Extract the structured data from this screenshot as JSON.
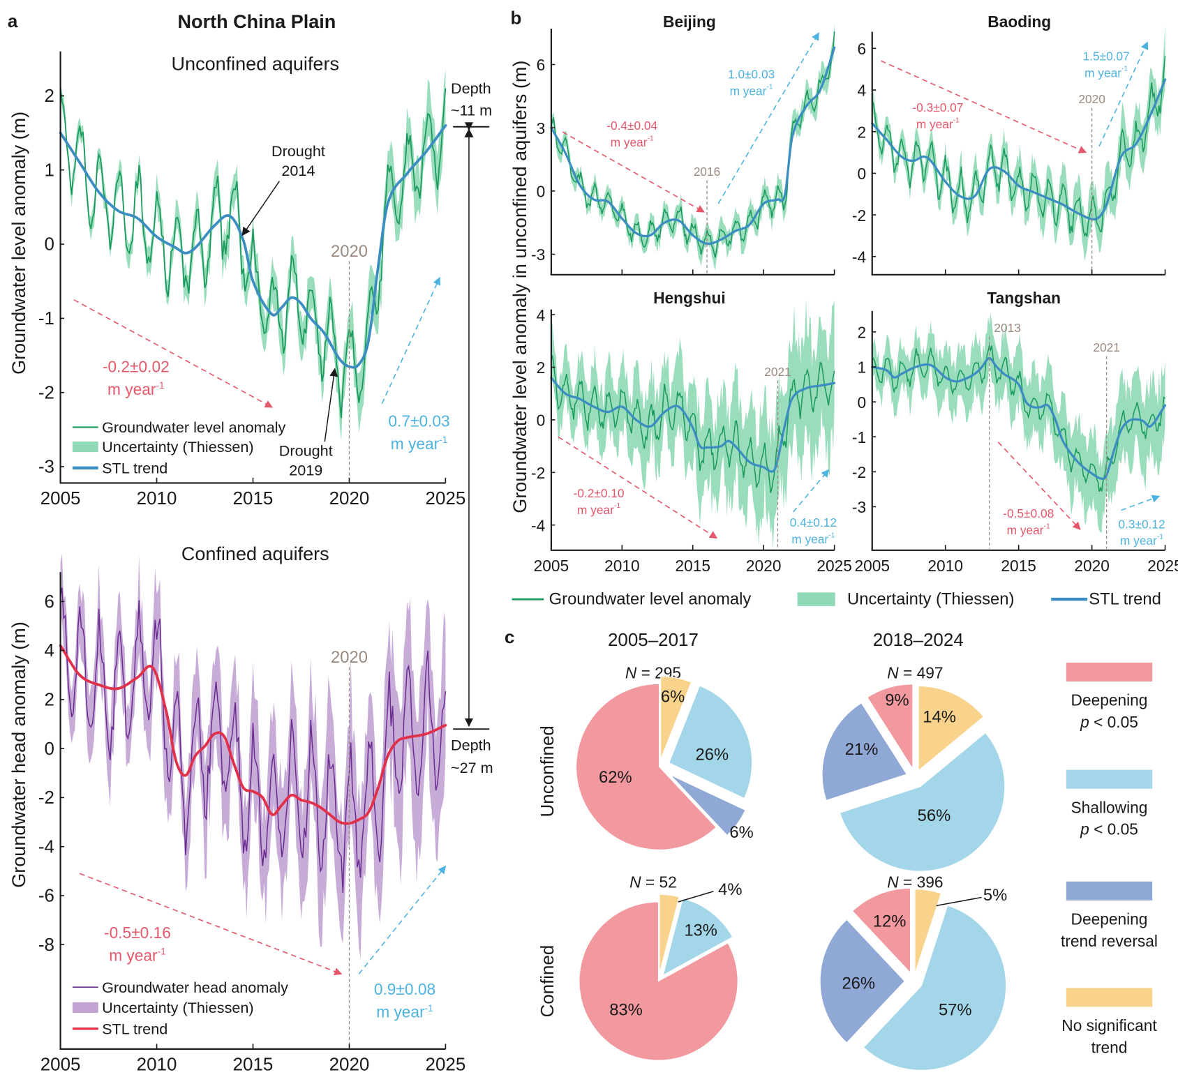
{
  "figure": {
    "panel_a_letter": "a",
    "panel_b_letter": "b",
    "panel_c_letter": "c",
    "panel_a_title": "North China Plain"
  },
  "colors": {
    "green_line": "#1a9a5a",
    "green_band": "#8fd9b6",
    "blue_trend": "#3d8ec0",
    "purple_line": "#6a2d8f",
    "purple_band": "#c2a3d4",
    "red_trend": "#e0304a",
    "decline_arrow": "#e5576a",
    "rise_arrow": "#4fb3e0",
    "year_marker": "#9a8a80",
    "deepening": "#f2989f",
    "shallowing": "#a3d6e8",
    "reversal": "#90a8d6",
    "no_trend": "#f9d28c"
  },
  "chart_data": [
    {
      "id": "a-unconfined",
      "type": "line",
      "title": "Unconfined aquifers",
      "xlabel": "",
      "ylabel": "Groundwater level anomaly (m)",
      "xlim": [
        2005,
        2025
      ],
      "ylim": [
        -3.2,
        2.6
      ],
      "xticks": [
        2005,
        2010,
        2015,
        2020,
        2025
      ],
      "yticks": [
        -3,
        -2,
        -1,
        0,
        1,
        2
      ],
      "grid": false,
      "legend": {
        "placement": "bottom-left",
        "entries": [
          "Groundwater level anomaly",
          "Uncertainty (Thiessen)",
          "STL trend"
        ]
      },
      "trend": {
        "x": [
          2005,
          2006,
          2007,
          2008,
          2009,
          2010,
          2011,
          2011.5,
          2012,
          2013,
          2013.8,
          2014.5,
          2015,
          2016,
          2016.5,
          2017,
          2017.5,
          2018,
          2018.7,
          2019.5,
          2020,
          2020.5,
          2021,
          2021.5,
          2022,
          2023,
          2024,
          2025
        ],
        "y": [
          1.5,
          1.1,
          0.7,
          0.45,
          0.35,
          0.1,
          -0.05,
          -0.12,
          -0.05,
          0.25,
          0.38,
          0.05,
          -0.5,
          -0.95,
          -0.85,
          -0.72,
          -0.8,
          -1.0,
          -1.2,
          -1.55,
          -1.65,
          -1.62,
          -1.3,
          -0.3,
          0.55,
          0.95,
          1.25,
          1.6
        ]
      },
      "anomaly_seasonal_amplitude": 0.55,
      "band_halfwidth_early": 0.12,
      "band_halfwidth_late": 0.35,
      "marker_year": 2020,
      "marker_label": "2020",
      "annotations": [
        {
          "text": "Drought",
          "text2": "2014",
          "target_x": 2014.5,
          "target_y": 0.1
        },
        {
          "text": "Drought",
          "text2": "2019",
          "target_x": 2019.2,
          "target_y": -1.7
        }
      ],
      "trend_arrows": [
        {
          "kind": "decline",
          "rate": "-0.2±0.02",
          "unit": "m year",
          "sup": "-1",
          "x0": 2005.7,
          "y0": -0.75,
          "x1": 2016,
          "y1": -2.2
        },
        {
          "kind": "rise",
          "rate": "0.7±0.03",
          "unit": "m year",
          "sup": "-1",
          "x0": 2021.7,
          "y0": -2.15,
          "x1": 2024.7,
          "y1": -0.45
        }
      ],
      "depth_label": [
        "Depth",
        "~11 m"
      ]
    },
    {
      "id": "a-confined",
      "type": "line",
      "title": "Confined aquifers",
      "ylabel": "Groundwater head anomaly (m)",
      "xlim": [
        2005,
        2025
      ],
      "ylim": [
        -12.2,
        7.2
      ],
      "xticks": [
        2005,
        2010,
        2015,
        2020,
        2025
      ],
      "yticks": [
        -8,
        -6,
        -4,
        -2,
        0,
        2,
        4,
        6
      ],
      "grid": false,
      "legend": {
        "placement": "bottom-left",
        "entries": [
          "Groundwater head anomaly",
          "Uncertainty (Thiessen)",
          "STL trend"
        ]
      },
      "trend": {
        "x": [
          2005,
          2006,
          2007,
          2008,
          2009,
          2009.8,
          2010.5,
          2011,
          2011.5,
          2012,
          2012.5,
          2013,
          2013.5,
          2014,
          2014.5,
          2015,
          2015.5,
          2016,
          2016.5,
          2017,
          2017.5,
          2018,
          2018.5,
          2019,
          2019.5,
          2020,
          2020.5,
          2021,
          2021.5,
          2022,
          2022.5,
          2023,
          2024,
          2025
        ],
        "y": [
          4.2,
          3.0,
          2.6,
          2.45,
          2.9,
          3.3,
          1.5,
          -0.5,
          -1.1,
          -0.3,
          0.1,
          0.6,
          0.5,
          -0.6,
          -1.6,
          -1.75,
          -2.0,
          -2.7,
          -2.3,
          -1.9,
          -2.1,
          -2.2,
          -2.4,
          -2.7,
          -3.0,
          -3.05,
          -2.9,
          -2.6,
          -1.6,
          -0.3,
          0.3,
          0.45,
          0.6,
          0.95
        ]
      },
      "anomaly_seasonal_amplitude": 2.6,
      "band_halfwidth_early": 1.2,
      "band_halfwidth_late": 3.0,
      "marker_year": 2020,
      "marker_label": "2020",
      "trend_arrows": [
        {
          "kind": "decline",
          "rate": "-0.5±0.16",
          "unit": "m year",
          "sup": "-1",
          "x0": 2006,
          "y0": -5.1,
          "x1": 2019.6,
          "y1": -9.2
        },
        {
          "kind": "rise",
          "rate": "0.9±0.08",
          "unit": "m year",
          "sup": "-1",
          "x0": 2020.5,
          "y0": -9.2,
          "x1": 2025,
          "y1": -4.8
        }
      ],
      "depth_label": [
        "Depth",
        "~27 m"
      ]
    },
    {
      "id": "b-beijing",
      "type": "line",
      "title": "Beijing",
      "xlim": [
        2005,
        2025
      ],
      "ylim": [
        -3.9,
        7.7
      ],
      "xticks": [
        2005,
        2010,
        2015,
        2020,
        2025
      ],
      "show_xtick_labels": false,
      "yticks": [
        -3,
        0,
        3,
        6
      ],
      "trend": {
        "x": [
          2005,
          2006,
          2007,
          2008,
          2009,
          2010,
          2011,
          2012,
          2013,
          2014,
          2015,
          2016,
          2017,
          2018,
          2019,
          2020,
          2021,
          2021.5,
          2022,
          2023,
          2024,
          2025
        ],
        "y": [
          3.0,
          1.8,
          0.3,
          -0.4,
          -0.5,
          -1.3,
          -2.0,
          -2.1,
          -1.5,
          -1.4,
          -2.1,
          -2.5,
          -2.3,
          -1.9,
          -1.6,
          -0.6,
          -0.4,
          -0.2,
          2.5,
          4.0,
          4.8,
          6.8
        ]
      },
      "anomaly_seasonal_amplitude": 0.6,
      "band_halfwidth_early": 0.35,
      "band_halfwidth_late": 0.6,
      "marker_year": 2016,
      "marker_label": "2016",
      "trend_arrows": [
        {
          "kind": "decline",
          "rate": "-0.4±0.04",
          "unit": "m year",
          "sup": "-1",
          "x0": 2005.8,
          "y0": 2.8,
          "x1": 2015.8,
          "y1": -1.0
        },
        {
          "kind": "rise",
          "rate": "1.0±0.03",
          "unit": "m year",
          "sup": "-1",
          "x0": 2016.8,
          "y0": -0.6,
          "x1": 2023.9,
          "y1": 7.5
        }
      ]
    },
    {
      "id": "b-baoding",
      "type": "line",
      "title": "Baoding",
      "xlim": [
        2005,
        2025
      ],
      "ylim": [
        -4.8,
        6.8
      ],
      "xticks": [
        2005,
        2010,
        2015,
        2020,
        2025
      ],
      "show_xtick_labels": false,
      "yticks": [
        -4,
        -2,
        0,
        2,
        4,
        6
      ],
      "trend": {
        "x": [
          2005,
          2006,
          2007,
          2007.8,
          2008.5,
          2009,
          2010,
          2011,
          2012,
          2013,
          2014,
          2015,
          2016,
          2017,
          2018,
          2019,
          2020,
          2020.5,
          2021,
          2022,
          2023,
          2024,
          2025
        ],
        "y": [
          2.4,
          1.6,
          0.8,
          0.6,
          0.8,
          0.6,
          -0.4,
          -1.1,
          -1.1,
          0.2,
          0.1,
          -0.6,
          -0.9,
          -1.2,
          -1.5,
          -1.9,
          -2.2,
          -2.1,
          -1.5,
          0.8,
          1.4,
          2.8,
          4.5
        ]
      },
      "anomaly_seasonal_amplitude": 1.0,
      "band_halfwidth_early": 0.5,
      "band_halfwidth_late": 1.1,
      "marker_year": 2020,
      "marker_label": "2020",
      "trend_arrows": [
        {
          "kind": "decline",
          "rate": "-0.3±0.07",
          "unit": "m year",
          "sup": "-1",
          "x0": 2005.6,
          "y0": 5.4,
          "x1": 2019.6,
          "y1": 1.0
        },
        {
          "kind": "rise",
          "rate": "1.5±0.07",
          "unit": "m year",
          "sup": "-1",
          "x0": 2020.5,
          "y0": 1.3,
          "x1": 2023.8,
          "y1": 6.3
        }
      ]
    },
    {
      "id": "b-hengshui",
      "type": "line",
      "title": "Hengshui",
      "xlim": [
        2005,
        2025
      ],
      "ylim": [
        -4.9,
        4.2
      ],
      "xticks": [
        2005,
        2010,
        2015,
        2020,
        2025
      ],
      "show_xtick_labels": true,
      "yticks": [
        -4,
        -2,
        0,
        2,
        4
      ],
      "trend": {
        "x": [
          2005,
          2006,
          2007,
          2008,
          2009,
          2010,
          2011,
          2012,
          2013,
          2014,
          2015,
          2015.5,
          2016,
          2017,
          2017.5,
          2018,
          2019,
          2020,
          2020.7,
          2021,
          2021.5,
          2022,
          2023,
          2024,
          2025
        ],
        "y": [
          1.6,
          1.0,
          0.8,
          0.5,
          0.3,
          0.5,
          0.0,
          -0.25,
          0.3,
          0.5,
          -0.3,
          -1.0,
          -1.05,
          -1.0,
          -0.8,
          -1.0,
          -1.6,
          -1.8,
          -1.95,
          -1.5,
          -0.2,
          0.8,
          1.2,
          1.3,
          1.4
        ]
      },
      "anomaly_seasonal_amplitude": 0.8,
      "band_halfwidth_early": 0.9,
      "band_halfwidth_late": 2.3,
      "marker_year": 2021,
      "marker_label": "2021",
      "trend_arrows": [
        {
          "kind": "decline",
          "rate": "-0.2±0.10",
          "unit": "m year",
          "sup": "-1",
          "x0": 2005.5,
          "y0": -0.65,
          "x1": 2016.7,
          "y1": -4.5
        },
        {
          "kind": "rise",
          "rate": "0.4±0.12",
          "unit": "m year",
          "sup": "-1",
          "x0": 2022.1,
          "y0": -3.5,
          "x1": 2024.6,
          "y1": -1.9
        }
      ]
    },
    {
      "id": "b-tangshan",
      "type": "line",
      "title": "Tangshan",
      "xlim": [
        2005,
        2025
      ],
      "ylim": [
        -4.2,
        2.6
      ],
      "xticks": [
        2005,
        2010,
        2015,
        2020,
        2025
      ],
      "show_xtick_labels": true,
      "yticks": [
        -3,
        -2,
        -1,
        0,
        1,
        2
      ],
      "trend": {
        "x": [
          2005,
          2006,
          2006.5,
          2007,
          2008,
          2009,
          2010,
          2010.5,
          2011,
          2012,
          2012.5,
          2013,
          2013.5,
          2014,
          2015,
          2015.5,
          2016,
          2016.5,
          2017,
          2017.5,
          2018,
          2019,
          2020,
          2020.7,
          2021,
          2021.5,
          2022,
          2022.5,
          2023,
          2023.5,
          2024,
          2025
        ],
        "y": [
          1.0,
          0.9,
          0.7,
          0.8,
          1.0,
          1.05,
          0.7,
          0.6,
          0.6,
          0.8,
          1.0,
          1.25,
          1.0,
          0.8,
          0.5,
          0.0,
          -0.15,
          -0.15,
          -0.1,
          -0.5,
          -1.1,
          -1.7,
          -2.05,
          -2.2,
          -2.1,
          -1.4,
          -0.8,
          -0.55,
          -0.5,
          -0.55,
          -0.7,
          -0.1
        ]
      },
      "anomaly_seasonal_amplitude": 0.4,
      "band_halfwidth_early": 0.55,
      "band_halfwidth_late": 1.1,
      "marker_year": 2021,
      "marker_label": "2021",
      "marker_year_2": 2013,
      "marker_label_2": "2013",
      "trend_arrows": [
        {
          "kind": "decline",
          "rate": "-0.5±0.08",
          "unit": "m year",
          "sup": "-1",
          "x0": 2013.6,
          "y0": -1.15,
          "x1": 2019.2,
          "y1": -3.65
        },
        {
          "kind": "rise",
          "rate": "0.3±0.12",
          "unit": "m year",
          "sup": "-1",
          "x0": 2022,
          "y0": -3.1,
          "x1": 2024.6,
          "y1": -2.7
        }
      ]
    },
    {
      "id": "c-pies",
      "type": "pie",
      "periods": [
        "2005–2017",
        "2018–2024"
      ],
      "rows": [
        "Unconfined",
        "Confined"
      ],
      "categories": [
        "Deepening p < 0.05",
        "Shallowing p < 0.05",
        "Deepening trend reversal",
        "No significant trend"
      ],
      "pies": [
        {
          "row": "Unconfined",
          "period": "2005–2017",
          "N": 295,
          "slices": [
            {
              "category": "No significant trend",
              "value": 6,
              "label": "6%"
            },
            {
              "category": "Shallowing p < 0.05",
              "value": 26,
              "label": "26%"
            },
            {
              "category": "Deepening trend reversal",
              "value": 6,
              "label": "6%"
            },
            {
              "category": "Deepening p < 0.05",
              "value": 62,
              "label": "62%"
            }
          ]
        },
        {
          "row": "Unconfined",
          "period": "2018–2024",
          "N": 497,
          "slices": [
            {
              "category": "No significant trend",
              "value": 14,
              "label": "14%"
            },
            {
              "category": "Shallowing p < 0.05",
              "value": 56,
              "label": "56%"
            },
            {
              "category": "Deepening trend reversal",
              "value": 21,
              "label": "21%"
            },
            {
              "category": "Deepening p < 0.05",
              "value": 9,
              "label": "9%"
            }
          ]
        },
        {
          "row": "Confined",
          "period": "2005–2017",
          "N": 52,
          "slices": [
            {
              "category": "No significant trend",
              "value": 4,
              "label": "4%"
            },
            {
              "category": "Shallowing p < 0.05",
              "value": 13,
              "label": "13%"
            },
            {
              "category": "Deepening trend reversal",
              "value": 0,
              "label": ""
            },
            {
              "category": "Deepening p < 0.05",
              "value": 83,
              "label": "83%"
            }
          ]
        },
        {
          "row": "Confined",
          "period": "2018–2024",
          "N": 396,
          "slices": [
            {
              "category": "No significant trend",
              "value": 5,
              "label": "5%"
            },
            {
              "category": "Shallowing p < 0.05",
              "value": 57,
              "label": "57%"
            },
            {
              "category": "Deepening trend reversal",
              "value": 26,
              "label": "26%"
            },
            {
              "category": "Deepening p < 0.05",
              "value": 12,
              "label": "12%"
            }
          ]
        }
      ],
      "legend": {
        "placement": "right",
        "entries": [
          {
            "line1": "Deepening",
            "line2_italic": "p",
            "line2_rest": " < 0.05"
          },
          {
            "line1": "Shallowing",
            "line2_italic": "p",
            "line2_rest": " < 0.05"
          },
          {
            "line1": "Deepening",
            "line2": "trend reversal"
          },
          {
            "line1": "No significant",
            "line2": "trend"
          }
        ]
      }
    }
  ],
  "panel_b": {
    "ylabel": "Groundwater level anomaly in unconfined aquifers (m)",
    "legend": [
      "Groundwater level anomaly",
      "Uncertainty (Thiessen)",
      "STL trend"
    ]
  }
}
